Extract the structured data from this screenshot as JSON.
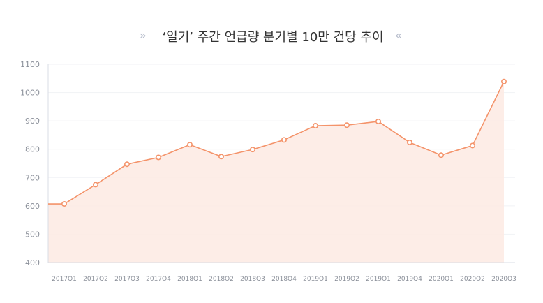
{
  "chart_data": {
    "type": "area",
    "title": "‘일기’ 주간 언급량 분기별 10만 건당 추이",
    "xlabel": "",
    "ylabel": "",
    "categories": [
      "2017Q1",
      "2017Q2",
      "2017Q3",
      "2017Q4",
      "2018Q1",
      "2018Q2",
      "2018Q3",
      "2018Q4",
      "2019Q1",
      "2019Q2",
      "2019Q1",
      "2019Q4",
      "2020Q1",
      "2020Q2",
      "2020Q3"
    ],
    "values": [
      607,
      675,
      747,
      771,
      816,
      774,
      799,
      833,
      883,
      885,
      898,
      824,
      779,
      813,
      1039
    ],
    "series_start_value": 607,
    "ylim": [
      400,
      1100
    ],
    "yticks": [
      400,
      500,
      600,
      700,
      800,
      900,
      1000,
      1100
    ],
    "grid": true,
    "legend": "none",
    "colors": {
      "line": "#f4936a",
      "fill": "#fdebe4",
      "marker_fill": "#ffffff"
    }
  }
}
